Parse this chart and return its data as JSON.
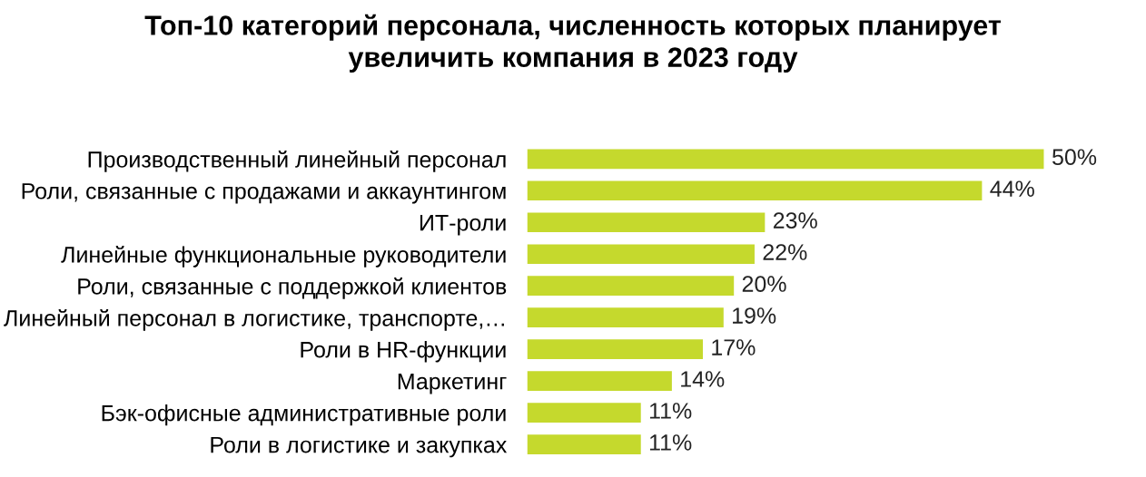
{
  "chart_data": {
    "type": "bar",
    "orientation": "horizontal",
    "title": "Топ-10 категорий персонала, численность которых планирует\nувеличить компания в 2023 году",
    "categories": [
      "Производственный линейный персонал",
      "Роли, связанные с продажами и аккаунтингом",
      "ИТ-роли",
      "Линейные функциональные руководители",
      "Роли, связанные с поддержкой клиентов",
      "Линейный персонал в логистике, транспорте,…",
      "Роли в HR-функции",
      "Маркетинг",
      "Бэк-офисные административные роли",
      "Роли в логистике и закупках"
    ],
    "values": [
      50,
      44,
      23,
      22,
      20,
      19,
      17,
      14,
      11,
      11
    ],
    "value_labels": [
      "50%",
      "44%",
      "23%",
      "22%",
      "20%",
      "19%",
      "17%",
      "14%",
      "11%",
      "11%"
    ],
    "color": "#c5d92d",
    "grid": false,
    "legend": false
  }
}
